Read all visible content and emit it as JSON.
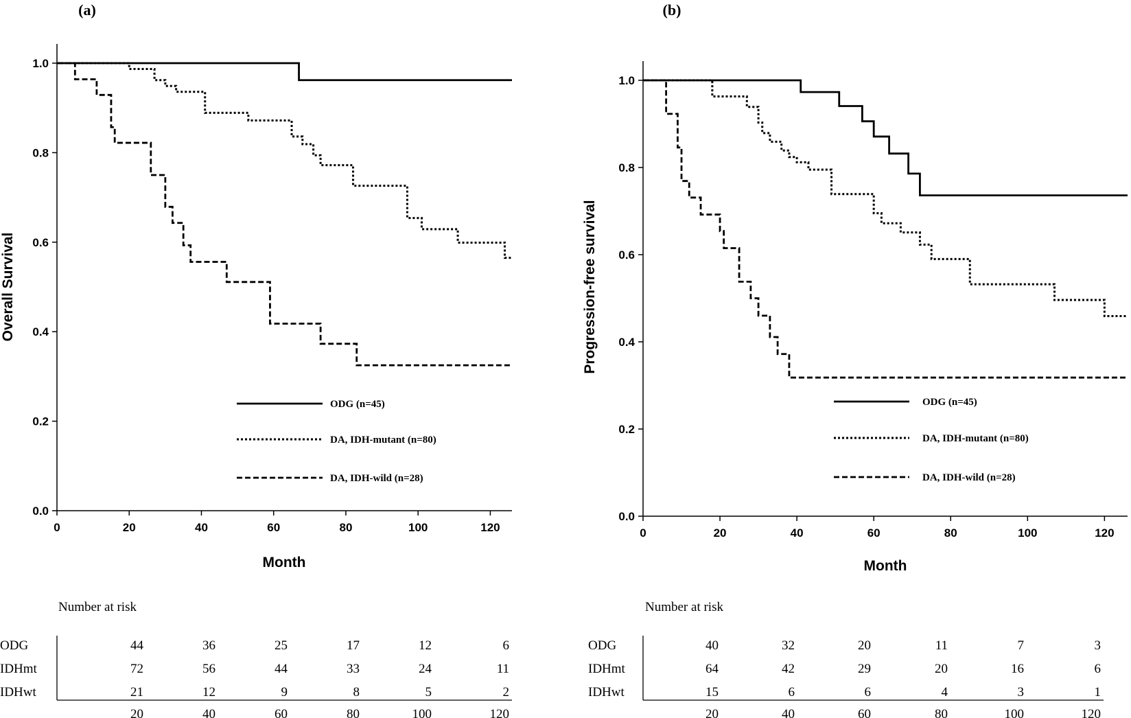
{
  "chart_data": [
    {
      "type": "line",
      "panel_label": "(a)",
      "xlabel": "Month",
      "ylabel": "Overall Survival",
      "xlim": [
        0,
        126
      ],
      "ylim": [
        0,
        1.0
      ],
      "xticks": [
        "0",
        "20",
        "40",
        "60",
        "80",
        "100",
        "120"
      ],
      "yticks": [
        "0.0",
        "0.2",
        "0.4",
        "0.6",
        "0.8",
        "1.0"
      ],
      "legend_position": "lower-right",
      "series": [
        {
          "name": "ODG (n=45)",
          "style": "solid",
          "steps": [
            [
              0,
              1.0
            ],
            [
              67,
              0.962
            ],
            [
              126,
              0.962
            ]
          ]
        },
        {
          "name": "DA, IDH-mutant (n=80)",
          "style": "dotted",
          "steps": [
            [
              0,
              1.0
            ],
            [
              20,
              0.987
            ],
            [
              27,
              0.962
            ],
            [
              30,
              0.949
            ],
            [
              33,
              0.936
            ],
            [
              41,
              0.889
            ],
            [
              53,
              0.872
            ],
            [
              65,
              0.836
            ],
            [
              68,
              0.819
            ],
            [
              71,
              0.794
            ],
            [
              73,
              0.772
            ],
            [
              82,
              0.726
            ],
            [
              97,
              0.654
            ],
            [
              101,
              0.629
            ],
            [
              111,
              0.599
            ],
            [
              124,
              0.565
            ],
            [
              126,
              0.565
            ]
          ]
        },
        {
          "name": "DA, IDH-wild (n=28)",
          "style": "dashed",
          "steps": [
            [
              0,
              1.0
            ],
            [
              5,
              0.964
            ],
            [
              11,
              0.929
            ],
            [
              15,
              0.857
            ],
            [
              16,
              0.822
            ],
            [
              26,
              0.75
            ],
            [
              30,
              0.679
            ],
            [
              32,
              0.643
            ],
            [
              35,
              0.593
            ],
            [
              37,
              0.556
            ],
            [
              47,
              0.511
            ],
            [
              59,
              0.418
            ],
            [
              73,
              0.373
            ],
            [
              83,
              0.325
            ],
            [
              126,
              0.325
            ]
          ]
        }
      ],
      "risk_table": {
        "title": "Number at risk",
        "x": [
          "20",
          "40",
          "60",
          "80",
          "100",
          "120"
        ],
        "rows": [
          {
            "label": "ODG",
            "values": [
              "44",
              "36",
              "25",
              "17",
              "12",
              "6"
            ]
          },
          {
            "label": "IDHmt",
            "values": [
              "72",
              "56",
              "44",
              "33",
              "24",
              "11"
            ]
          },
          {
            "label": "IDHwt",
            "values": [
              "21",
              "12",
              "9",
              "8",
              "5",
              "2"
            ]
          }
        ]
      }
    },
    {
      "type": "line",
      "panel_label": "(b)",
      "xlabel": "Month",
      "ylabel": "Progression-free survival",
      "xlim": [
        0,
        126
      ],
      "ylim": [
        0,
        1.0
      ],
      "xticks": [
        "0",
        "20",
        "40",
        "60",
        "80",
        "100",
        "120"
      ],
      "yticks": [
        "0.0",
        "0.2",
        "0.4",
        "0.6",
        "0.8",
        "1.0"
      ],
      "legend_position": "lower-right",
      "series": [
        {
          "name": "ODG (n=45)",
          "style": "solid",
          "steps": [
            [
              0,
              1.0
            ],
            [
              41,
              0.973
            ],
            [
              51,
              0.941
            ],
            [
              57,
              0.906
            ],
            [
              60,
              0.871
            ],
            [
              64,
              0.832
            ],
            [
              69,
              0.786
            ],
            [
              72,
              0.736
            ],
            [
              126,
              0.736
            ]
          ]
        },
        {
          "name": "DA, IDH-mutant (n=80)",
          "style": "dotted",
          "steps": [
            [
              0,
              1.0
            ],
            [
              18,
              0.963
            ],
            [
              27,
              0.939
            ],
            [
              30,
              0.903
            ],
            [
              31,
              0.879
            ],
            [
              33,
              0.859
            ],
            [
              36,
              0.839
            ],
            [
              38,
              0.824
            ],
            [
              40,
              0.812
            ],
            [
              43,
              0.795
            ],
            [
              49,
              0.739
            ],
            [
              60,
              0.695
            ],
            [
              62,
              0.672
            ],
            [
              67,
              0.651
            ],
            [
              72,
              0.623
            ],
            [
              75,
              0.59
            ],
            [
              85,
              0.532
            ],
            [
              107,
              0.496
            ],
            [
              120,
              0.459
            ],
            [
              126,
              0.459
            ]
          ]
        },
        {
          "name": "DA, IDH-wild (n=28)",
          "style": "dashed",
          "steps": [
            [
              0,
              1.0
            ],
            [
              6,
              0.923
            ],
            [
              9,
              0.846
            ],
            [
              10,
              0.769
            ],
            [
              12,
              0.731
            ],
            [
              15,
              0.692
            ],
            [
              20,
              0.654
            ],
            [
              21,
              0.615
            ],
            [
              25,
              0.538
            ],
            [
              28,
              0.5
            ],
            [
              30,
              0.46
            ],
            [
              33,
              0.411
            ],
            [
              35,
              0.372
            ],
            [
              38,
              0.318
            ],
            [
              126,
              0.318
            ]
          ]
        }
      ],
      "risk_table": {
        "title": "Number at risk",
        "x": [
          "20",
          "40",
          "60",
          "80",
          "100",
          "120"
        ],
        "rows": [
          {
            "label": "ODG",
            "values": [
              "40",
              "32",
              "20",
              "11",
              "7",
              "3"
            ]
          },
          {
            "label": "IDHmt",
            "values": [
              "64",
              "42",
              "29",
              "20",
              "16",
              "6"
            ]
          },
          {
            "label": "IDHwt",
            "values": [
              "15",
              "6",
              "6",
              "4",
              "3",
              "1"
            ]
          }
        ]
      }
    }
  ]
}
